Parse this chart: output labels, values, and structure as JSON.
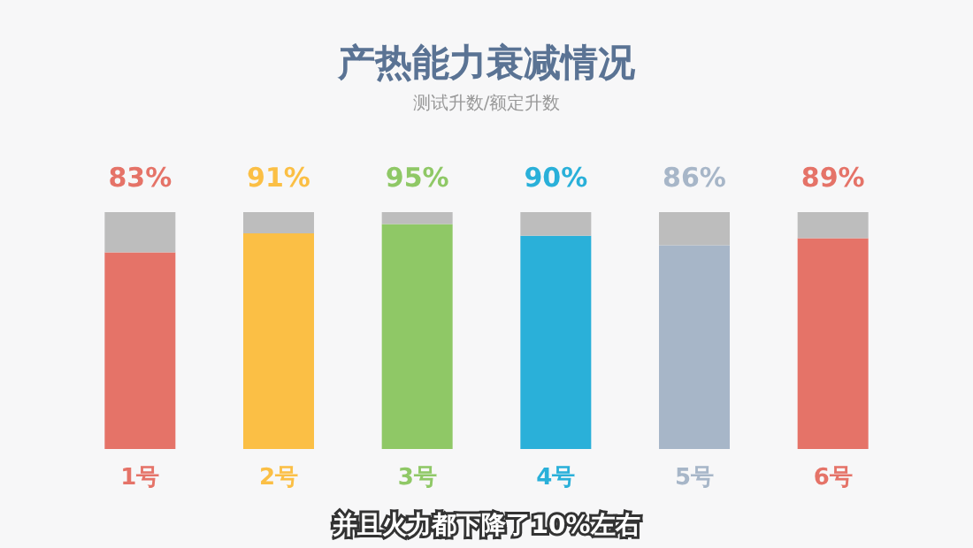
{
  "chart_data": {
    "type": "bar",
    "title": "产热能力衰减情况",
    "subtitle": "测试升数/额定升数",
    "categories": [
      "1号",
      "2号",
      "3号",
      "4号",
      "5号",
      "6号"
    ],
    "stacked": true,
    "series": [
      {
        "colors": [
          "#e57368",
          "#fbbf45",
          "#8fc866",
          "#2ab0d9",
          "#a7b6c8",
          "#e57368"
        ],
        "values": [
          83,
          91,
          95,
          90,
          86,
          89
        ],
        "value_labels": [
          "83%",
          "91%",
          "95%",
          "90%",
          "86%",
          "89%"
        ]
      },
      {
        "color": "#bdbdbd",
        "values": [
          17,
          9,
          5,
          10,
          14,
          11
        ]
      }
    ],
    "grid": false,
    "tick_labels": "x",
    "annotations": [
      "并且火力都下降了10%左右"
    ]
  }
}
